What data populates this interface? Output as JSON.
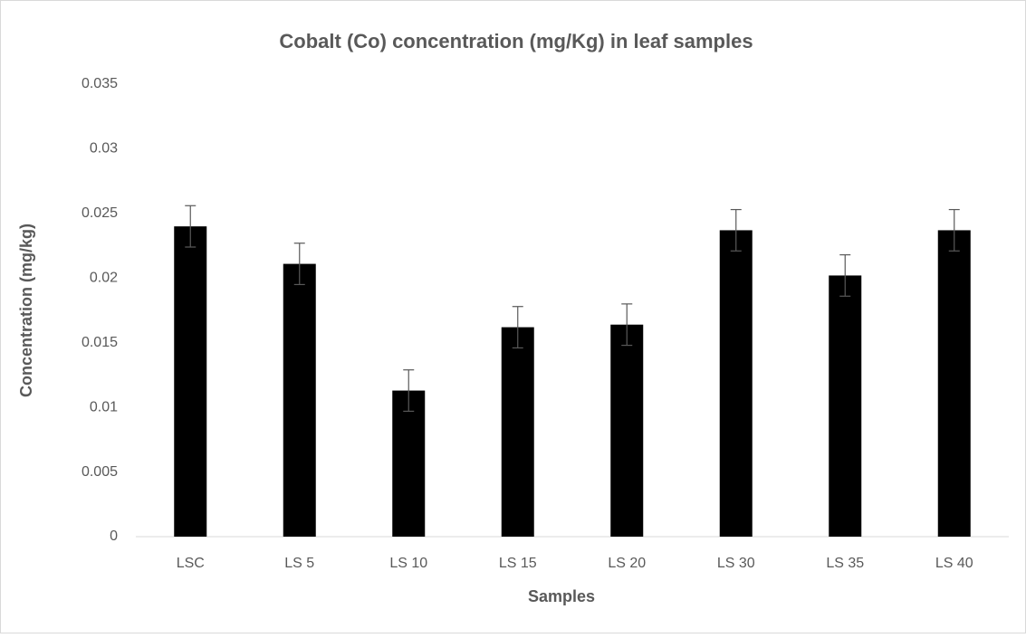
{
  "chart_data": {
    "type": "bar",
    "title": "Cobalt (Co) concentration (mg/Kg) in leaf samples",
    "x_label": "Samples",
    "y_label": "Concentration (mg/kg)",
    "categories": [
      "LSC",
      "LS 5",
      "LS 10",
      "LS 15",
      "LS 20",
      "LS 30",
      "LS 35",
      "LS 40"
    ],
    "values": [
      0.024,
      0.0211,
      0.0113,
      0.0162,
      0.0164,
      0.0237,
      0.0202,
      0.0237
    ],
    "errors": [
      0.0016,
      0.0016,
      0.0016,
      0.0016,
      0.0016,
      0.0016,
      0.0016,
      0.0016
    ],
    "color": "#000000",
    "ylim": [
      0,
      0.035
    ],
    "yticks": [
      0,
      0.005,
      0.01,
      0.015,
      0.02,
      0.025,
      0.03,
      0.035
    ],
    "grid": false
  }
}
